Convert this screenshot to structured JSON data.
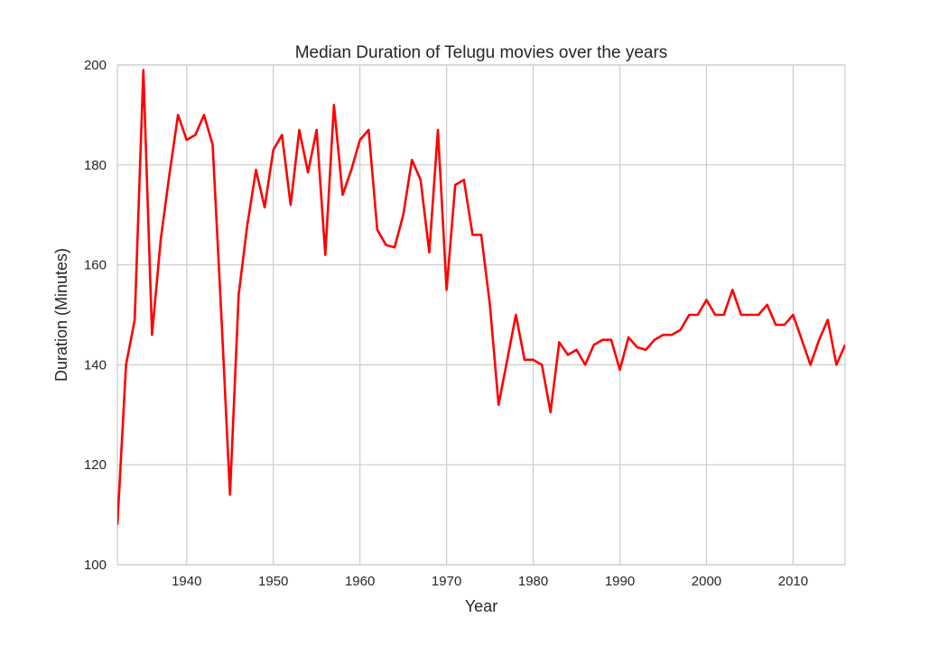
{
  "chart_data": {
    "type": "line",
    "title": "Median Duration of Telugu movies over the years",
    "xlabel": "Year",
    "ylabel": "Duration (Minutes)",
    "xlim": [
      1932,
      2016
    ],
    "ylim": [
      100,
      200
    ],
    "xticks": [
      1940,
      1950,
      1960,
      1970,
      1980,
      1990,
      2000,
      2010
    ],
    "yticks": [
      100,
      120,
      140,
      160,
      180,
      200
    ],
    "grid": true,
    "line_color": "#ff0000",
    "grid_color": "#cccccc",
    "series": [
      {
        "x": [
          1932,
          1933,
          1934,
          1935,
          1936,
          1937,
          1938,
          1939,
          1940,
          1941,
          1942,
          1943,
          1944,
          1945,
          1946,
          1947,
          1948,
          1949,
          1950,
          1951,
          1952,
          1953,
          1954,
          1955,
          1956,
          1957,
          1958,
          1959,
          1960,
          1961,
          1962,
          1963,
          1964,
          1965,
          1966,
          1967,
          1968,
          1969,
          1970,
          1971,
          1972,
          1973,
          1974,
          1975,
          1976,
          1977,
          1978,
          1979,
          1980,
          1981,
          1982,
          1983,
          1984,
          1985,
          1986,
          1987,
          1988,
          1989,
          1990,
          1991,
          1992,
          1993,
          1994,
          1995,
          1996,
          1997,
          1998,
          1999,
          2000,
          2001,
          2002,
          2003,
          2004,
          2005,
          2006,
          2007,
          2008,
          2009,
          2010,
          2011,
          2012,
          2013,
          2014,
          2015,
          2016
        ],
        "values": [
          108,
          140,
          149,
          199,
          146,
          165,
          178,
          190,
          185,
          186,
          190,
          184,
          150,
          114,
          154,
          168,
          179,
          171.5,
          183,
          186,
          172,
          187,
          178.5,
          187,
          162,
          192,
          174,
          179,
          185,
          187,
          167,
          164,
          163.5,
          170,
          181,
          177,
          162.5,
          187,
          155,
          176,
          177,
          166,
          166,
          152,
          132,
          141,
          150,
          141,
          141,
          140,
          130.5,
          144.5,
          142,
          143,
          140,
          144,
          145,
          145,
          139,
          145.5,
          143.5,
          143,
          145,
          146,
          146,
          147,
          150,
          150,
          153,
          150,
          150,
          155,
          150,
          150,
          150,
          152,
          148,
          148,
          150,
          145,
          140,
          145,
          149,
          140,
          144
        ]
      }
    ]
  }
}
